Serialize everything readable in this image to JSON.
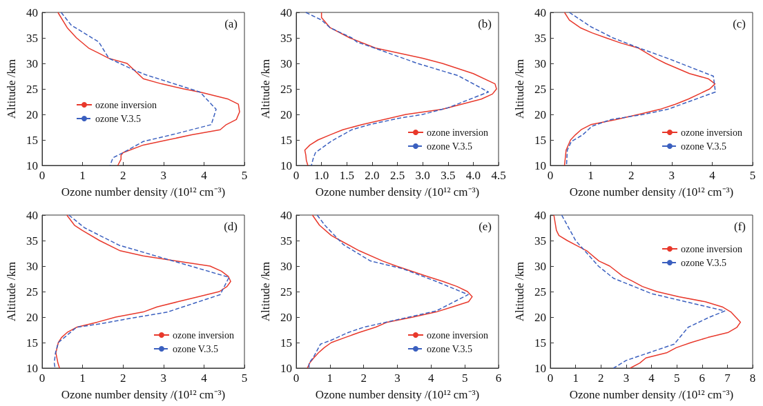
{
  "chart_data": [
    {
      "type": "line",
      "xlabel": "Ozone number density /(10¹² cm⁻³)",
      "ylabel": "Altitude /km",
      "annotations": [
        "(a)"
      ],
      "xlim": [
        0,
        5
      ],
      "xticks": [
        0,
        1,
        2,
        3,
        4,
        5
      ],
      "ylim": [
        10,
        40
      ],
      "yticks": [
        10,
        15,
        20,
        25,
        30,
        35,
        40
      ],
      "grid": false,
      "legend": "left",
      "marker": "none",
      "series": [
        {
          "name": "ozone inversion",
          "color": "#e8382b",
          "line_style": "solid",
          "x": [
            0.39,
            0.62,
            0.85,
            1.15,
            1.4,
            1.65,
            2.1,
            2.3,
            2.5,
            2.95,
            3.5,
            3.95,
            4.6,
            4.85,
            4.88,
            4.8,
            4.55,
            4.4,
            3.7,
            3.1,
            2.5,
            2.0,
            1.95,
            1.95,
            1.87
          ],
          "values": [
            40,
            37,
            35,
            33,
            32,
            31,
            30,
            28.5,
            27,
            26,
            25,
            24.3,
            23,
            22,
            20.5,
            19,
            18,
            17,
            16,
            15,
            14,
            12.5,
            12,
            11.2,
            10
          ]
        },
        {
          "name": "ozone V.3.5",
          "color": "#3a5fbf",
          "line_style": "dashed",
          "x": [
            0.47,
            0.72,
            1.4,
            1.65,
            2.3,
            2.55,
            3.9,
            4.3,
            4.18,
            3.2,
            2.5,
            2.0,
            1.75,
            1.68
          ],
          "values": [
            40,
            37.5,
            34.2,
            31,
            28.6,
            27.8,
            24.4,
            21,
            18,
            16,
            14.7,
            12.5,
            11.5,
            10
          ]
        }
      ]
    },
    {
      "type": "line",
      "xlabel": "Ozone number density /(10¹² cm⁻³)",
      "ylabel": "Altitude /km",
      "annotations": [
        "(b)"
      ],
      "xlim": [
        0.5,
        4.5
      ],
      "xticks": [
        {
          "value": 0.5,
          "label": "0"
        },
        {
          "value": 1,
          "label": "1.0"
        },
        {
          "value": 1.5,
          "label": "1.5"
        },
        {
          "value": 2,
          "label": "2.0"
        },
        {
          "value": 2.5,
          "label": "2.5"
        },
        {
          "value": 3,
          "label": "3.0"
        },
        {
          "value": 3.5,
          "label": "3.5"
        },
        {
          "value": 4,
          "label": "4.0"
        },
        {
          "value": 4.5,
          "label": "4.5"
        }
      ],
      "ylim": [
        10,
        40
      ],
      "yticks": [
        10,
        15,
        20,
        25,
        30,
        35,
        40
      ],
      "grid": false,
      "legend": "bottom right",
      "marker": "none",
      "series": [
        {
          "name": "ozone inversion",
          "color": "#e8382b",
          "line_style": "solid",
          "x": [
            1.0,
            1.0,
            1.17,
            1.56,
            2.07,
            3.0,
            3.39,
            4.0,
            4.43,
            4.46,
            4.38,
            4.16,
            3.39,
            2.67,
            2.23,
            1.8,
            1.42,
            1.17,
            0.93,
            0.77,
            0.67,
            0.69,
            0.7,
            0.73
          ],
          "values": [
            40,
            39,
            37,
            35,
            33,
            31,
            30,
            28,
            26,
            25,
            24,
            23,
            21,
            20,
            19,
            18,
            17,
            16,
            15,
            14,
            13,
            12,
            11,
            10
          ]
        },
        {
          "name": "ozone V.3.5",
          "color": "#3a5fbf",
          "line_style": "dashed",
          "x": [
            0.69,
            1.0,
            1.17,
            1.6,
            1.7,
            2.05,
            2.9,
            3.7,
            4.3,
            3.5,
            3.0,
            2.5,
            1.95,
            1.6,
            1.2,
            0.88,
            0.84,
            0.8
          ],
          "values": [
            40,
            38.5,
            37,
            35,
            34.2,
            33,
            30,
            27.6,
            24.4,
            21.3,
            20,
            19.2,
            18,
            17,
            14.8,
            12.5,
            11.5,
            10
          ]
        }
      ]
    },
    {
      "type": "line",
      "xlabel": "Ozone number density /(10¹² cm⁻³)",
      "ylabel": "Altitude /km",
      "annotations": [
        "(c)"
      ],
      "xlim": [
        0,
        5
      ],
      "xticks": [
        0,
        1,
        2,
        3,
        4,
        5
      ],
      "ylim": [
        10,
        40
      ],
      "yticks": [
        10,
        15,
        20,
        25,
        30,
        35,
        40
      ],
      "grid": false,
      "legend": "bottom right",
      "marker": "none",
      "series": [
        {
          "name": "ozone inversion",
          "color": "#e8382b",
          "line_style": "solid",
          "x": [
            0.35,
            0.47,
            0.74,
            1.03,
            1.38,
            1.74,
            2.18,
            2.6,
            2.85,
            3.44,
            3.9,
            4.07,
            3.94,
            3.41,
            3.09,
            2.71,
            2.18,
            1.62,
            1.0,
            0.76,
            0.62,
            0.5,
            0.39,
            0.35
          ],
          "values": [
            40,
            38.5,
            37,
            36,
            35,
            34,
            33,
            31,
            30,
            28,
            27,
            26,
            25,
            23,
            22,
            21,
            20,
            19,
            18,
            17,
            16,
            15,
            13,
            10
          ]
        },
        {
          "name": "ozone V.3.5",
          "color": "#3a5fbf",
          "line_style": "dashed",
          "x": [
            0.47,
            1.0,
            1.55,
            2.2,
            2.9,
            4.03,
            4.08,
            2.9,
            2.3,
            1.5,
            1.03,
            0.8,
            0.52,
            0.42,
            0.4
          ],
          "values": [
            40,
            37.2,
            35,
            33,
            31,
            27.5,
            24.4,
            21,
            20,
            19,
            17.7,
            16,
            14.7,
            13,
            10
          ]
        }
      ]
    },
    {
      "type": "line",
      "xlabel": "Ozone number density /(10¹² cm⁻³)",
      "ylabel": "Altitude /km",
      "annotations": [
        "(d)"
      ],
      "xlim": [
        0,
        5
      ],
      "xticks": [
        0,
        1,
        2,
        3,
        4,
        5
      ],
      "ylim": [
        10,
        40
      ],
      "yticks": [
        10,
        15,
        20,
        25,
        30,
        35,
        40
      ],
      "grid": false,
      "legend": "bottom right",
      "marker": "none",
      "series": [
        {
          "name": "ozone inversion",
          "color": "#e8382b",
          "line_style": "solid",
          "x": [
            0.61,
            0.8,
            0.99,
            1.42,
            1.93,
            2.5,
            3.3,
            4.15,
            4.43,
            4.6,
            4.66,
            4.57,
            4.38,
            3.86,
            3.35,
            2.84,
            2.5,
            1.82,
            1.36,
            0.85,
            0.62,
            0.48,
            0.4,
            0.34,
            0.39,
            0.43
          ],
          "values": [
            40,
            38,
            37,
            35,
            33,
            32,
            31,
            30,
            29,
            28,
            27,
            26,
            25,
            24,
            23,
            22,
            21,
            20,
            19,
            18,
            17,
            16,
            15,
            13,
            11,
            10
          ]
        },
        {
          "name": "ozone V.3.5",
          "color": "#3a5fbf",
          "line_style": "dashed",
          "x": [
            0.66,
            1.05,
            1.9,
            3.15,
            4.62,
            4.4,
            3.1,
            2.0,
            1.45,
            0.85,
            0.4,
            0.33,
            0.3,
            0.32
          ],
          "values": [
            40,
            37.5,
            34.1,
            31.2,
            27.8,
            24.4,
            21,
            19.5,
            18.7,
            18,
            15,
            13,
            11,
            10
          ]
        }
      ]
    },
    {
      "type": "line",
      "xlabel": "Ozone number density /(10¹² cm⁻³)",
      "ylabel": "Altitude /km",
      "annotations": [
        "(e)"
      ],
      "xlim": [
        0,
        6
      ],
      "xticks": [
        0,
        1,
        2,
        3,
        4,
        5,
        6
      ],
      "ylim": [
        10,
        40
      ],
      "yticks": [
        10,
        15,
        20,
        25,
        30,
        35,
        40
      ],
      "grid": false,
      "legend": "bottom right",
      "marker": "none",
      "series": [
        {
          "name": "ozone inversion",
          "color": "#e8382b",
          "line_style": "solid",
          "x": [
            0.48,
            0.69,
            1.04,
            1.31,
            1.87,
            2.56,
            2.97,
            3.87,
            4.35,
            4.77,
            5.08,
            5.22,
            5.11,
            4.63,
            4.15,
            3.46,
            2.7,
            2.35,
            1.87,
            1.45,
            1.04,
            0.83,
            0.66,
            0.52,
            0.4,
            0.33
          ],
          "values": [
            40,
            38,
            36,
            35,
            33,
            31,
            30,
            28,
            27,
            26,
            25,
            24,
            23,
            22,
            21,
            20,
            19,
            18,
            17,
            16,
            15,
            14,
            13,
            12,
            11,
            10
          ]
        },
        {
          "name": "ozone V.3.5",
          "color": "#3a5fbf",
          "line_style": "dashed",
          "x": [
            0.62,
            0.85,
            1.4,
            2.2,
            3.15,
            4.15,
            5.1,
            4.15,
            3.55,
            3.0,
            2.0,
            1.55,
            1.05,
            0.72,
            0.5,
            0.38,
            0.38
          ],
          "values": [
            40,
            38,
            34.2,
            31,
            29.5,
            27,
            24.4,
            21.2,
            20.3,
            19.5,
            18,
            17,
            15.5,
            14.7,
            12,
            11,
            10
          ]
        }
      ]
    },
    {
      "type": "line",
      "xlabel": "Ozone number density /(10¹² cm⁻³)",
      "ylabel": "Altitude /km",
      "annotations": [
        "(f)"
      ],
      "xlim": [
        0,
        8
      ],
      "xticks": [
        0,
        1,
        2,
        3,
        4,
        5,
        6,
        7,
        8
      ],
      "ylim": [
        10,
        40
      ],
      "yticks": [
        10,
        15,
        20,
        25,
        30,
        35,
        40
      ],
      "grid": false,
      "legend": "top right",
      "marker": "none",
      "series": [
        {
          "name": "ozone inversion",
          "color": "#e8382b",
          "line_style": "solid",
          "x": [
            0.14,
            0.24,
            0.34,
            0.67,
            1.05,
            1.44,
            1.92,
            2.35,
            2.87,
            3.26,
            3.64,
            4.21,
            5.08,
            6.13,
            6.8,
            7.14,
            7.33,
            7.52,
            7.38,
            7.04,
            6.23,
            5.56,
            4.98,
            4.6,
            3.78,
            3.54,
            3.16
          ],
          "values": [
            40,
            37,
            36,
            35,
            34,
            33,
            31,
            30,
            28,
            27,
            26,
            25,
            24,
            23,
            22,
            21,
            20,
            19,
            18,
            17,
            16,
            15,
            14,
            13,
            12,
            11,
            10
          ]
        },
        {
          "name": "ozone V.3.5",
          "color": "#3a5fbf",
          "line_style": "dashed",
          "x": [
            0.45,
            1.0,
            1.9,
            2.5,
            4.0,
            6.9,
            6.3,
            5.45,
            4.9,
            3.0,
            2.5
          ],
          "values": [
            40,
            35,
            30,
            27.6,
            24.6,
            21.2,
            20,
            18,
            14.7,
            11.5,
            10
          ]
        }
      ]
    }
  ]
}
